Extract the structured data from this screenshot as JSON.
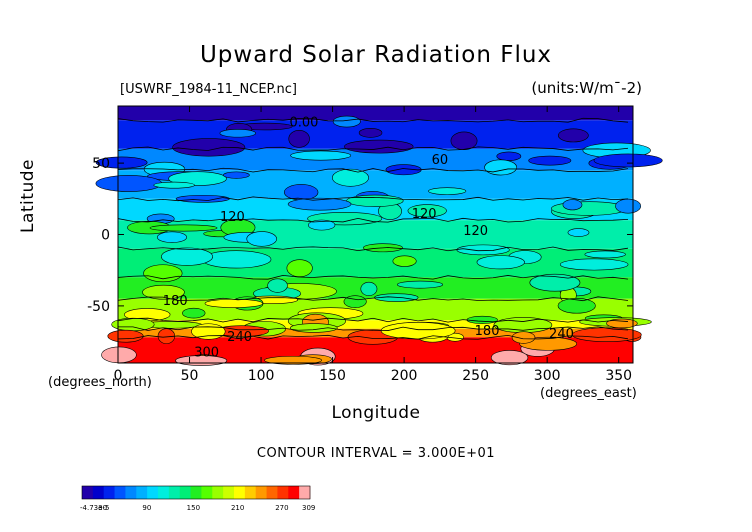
{
  "title": "Upward Solar Radiation Flux",
  "file_label": "[USWRF_1984-11_NCEP.nc]",
  "units_label": "(units:W/m^-2)",
  "contour_interval": "CONTOUR INTERVAL = 3.000E+01",
  "chart_data": {
    "type": "heatmap",
    "title": "Upward Solar Radiation Flux",
    "xlabel": "Longitude",
    "ylabel": "Latitude",
    "x_units": "(degrees_east)",
    "y_units": "(degrees_north)",
    "xlim": [
      0,
      360
    ],
    "ylim": [
      -90,
      90
    ],
    "x_ticks": [
      0,
      50,
      100,
      150,
      200,
      250,
      300,
      350
    ],
    "y_ticks": [
      50,
      0,
      -50
    ],
    "contour_labels": [
      {
        "text": "0.00",
        "lon": 130,
        "lat": 78
      },
      {
        "text": "60",
        "lon": 225,
        "lat": 52
      },
      {
        "text": "120",
        "lon": 80,
        "lat": 12
      },
      {
        "text": "120",
        "lon": 214,
        "lat": 14
      },
      {
        "text": "120",
        "lon": 250,
        "lat": 2
      },
      {
        "text": "180",
        "lon": 40,
        "lat": -47
      },
      {
        "text": "180",
        "lon": 258,
        "lat": -68
      },
      {
        "text": "240",
        "lon": 85,
        "lat": -72
      },
      {
        "text": "240",
        "lon": 310,
        "lat": -70
      },
      {
        "text": "300",
        "lon": 62,
        "lat": -83
      }
    ],
    "lat_bands": [
      {
        "lat_top": 90,
        "lat_bottom": 80,
        "value": 0
      },
      {
        "lat_top": 80,
        "lat_bottom": 60,
        "value": 30
      },
      {
        "lat_top": 60,
        "lat_bottom": 45,
        "value": 60
      },
      {
        "lat_top": 45,
        "lat_bottom": 25,
        "value": 80
      },
      {
        "lat_top": 25,
        "lat_bottom": 10,
        "value": 100
      },
      {
        "lat_top": 10,
        "lat_bottom": -10,
        "value": 120
      },
      {
        "lat_top": -10,
        "lat_bottom": -30,
        "value": 140
      },
      {
        "lat_top": -30,
        "lat_bottom": -45,
        "value": 160
      },
      {
        "lat_top": -45,
        "lat_bottom": -60,
        "value": 180
      },
      {
        "lat_top": -60,
        "lat_bottom": -66,
        "value": 210
      },
      {
        "lat_top": -66,
        "lat_bottom": -72,
        "value": 240
      },
      {
        "lat_top": -72,
        "lat_bottom": -90,
        "value": 280
      }
    ],
    "colorbar": {
      "min_label": "-4.73e-5",
      "ticks": [
        "30",
        "90",
        "150",
        "210",
        "270",
        "309"
      ],
      "colors": [
        "#2200aa",
        "#0000cc",
        "#0022ee",
        "#0055ff",
        "#0088ff",
        "#00b0ff",
        "#00d8ff",
        "#00eedd",
        "#00eeaa",
        "#00ee77",
        "#22ee22",
        "#55ff00",
        "#99ff00",
        "#ccff00",
        "#ffff00",
        "#ffcc00",
        "#ff9900",
        "#ff6600",
        "#ff3300",
        "#ff0000",
        "#ffaaaa"
      ]
    }
  }
}
